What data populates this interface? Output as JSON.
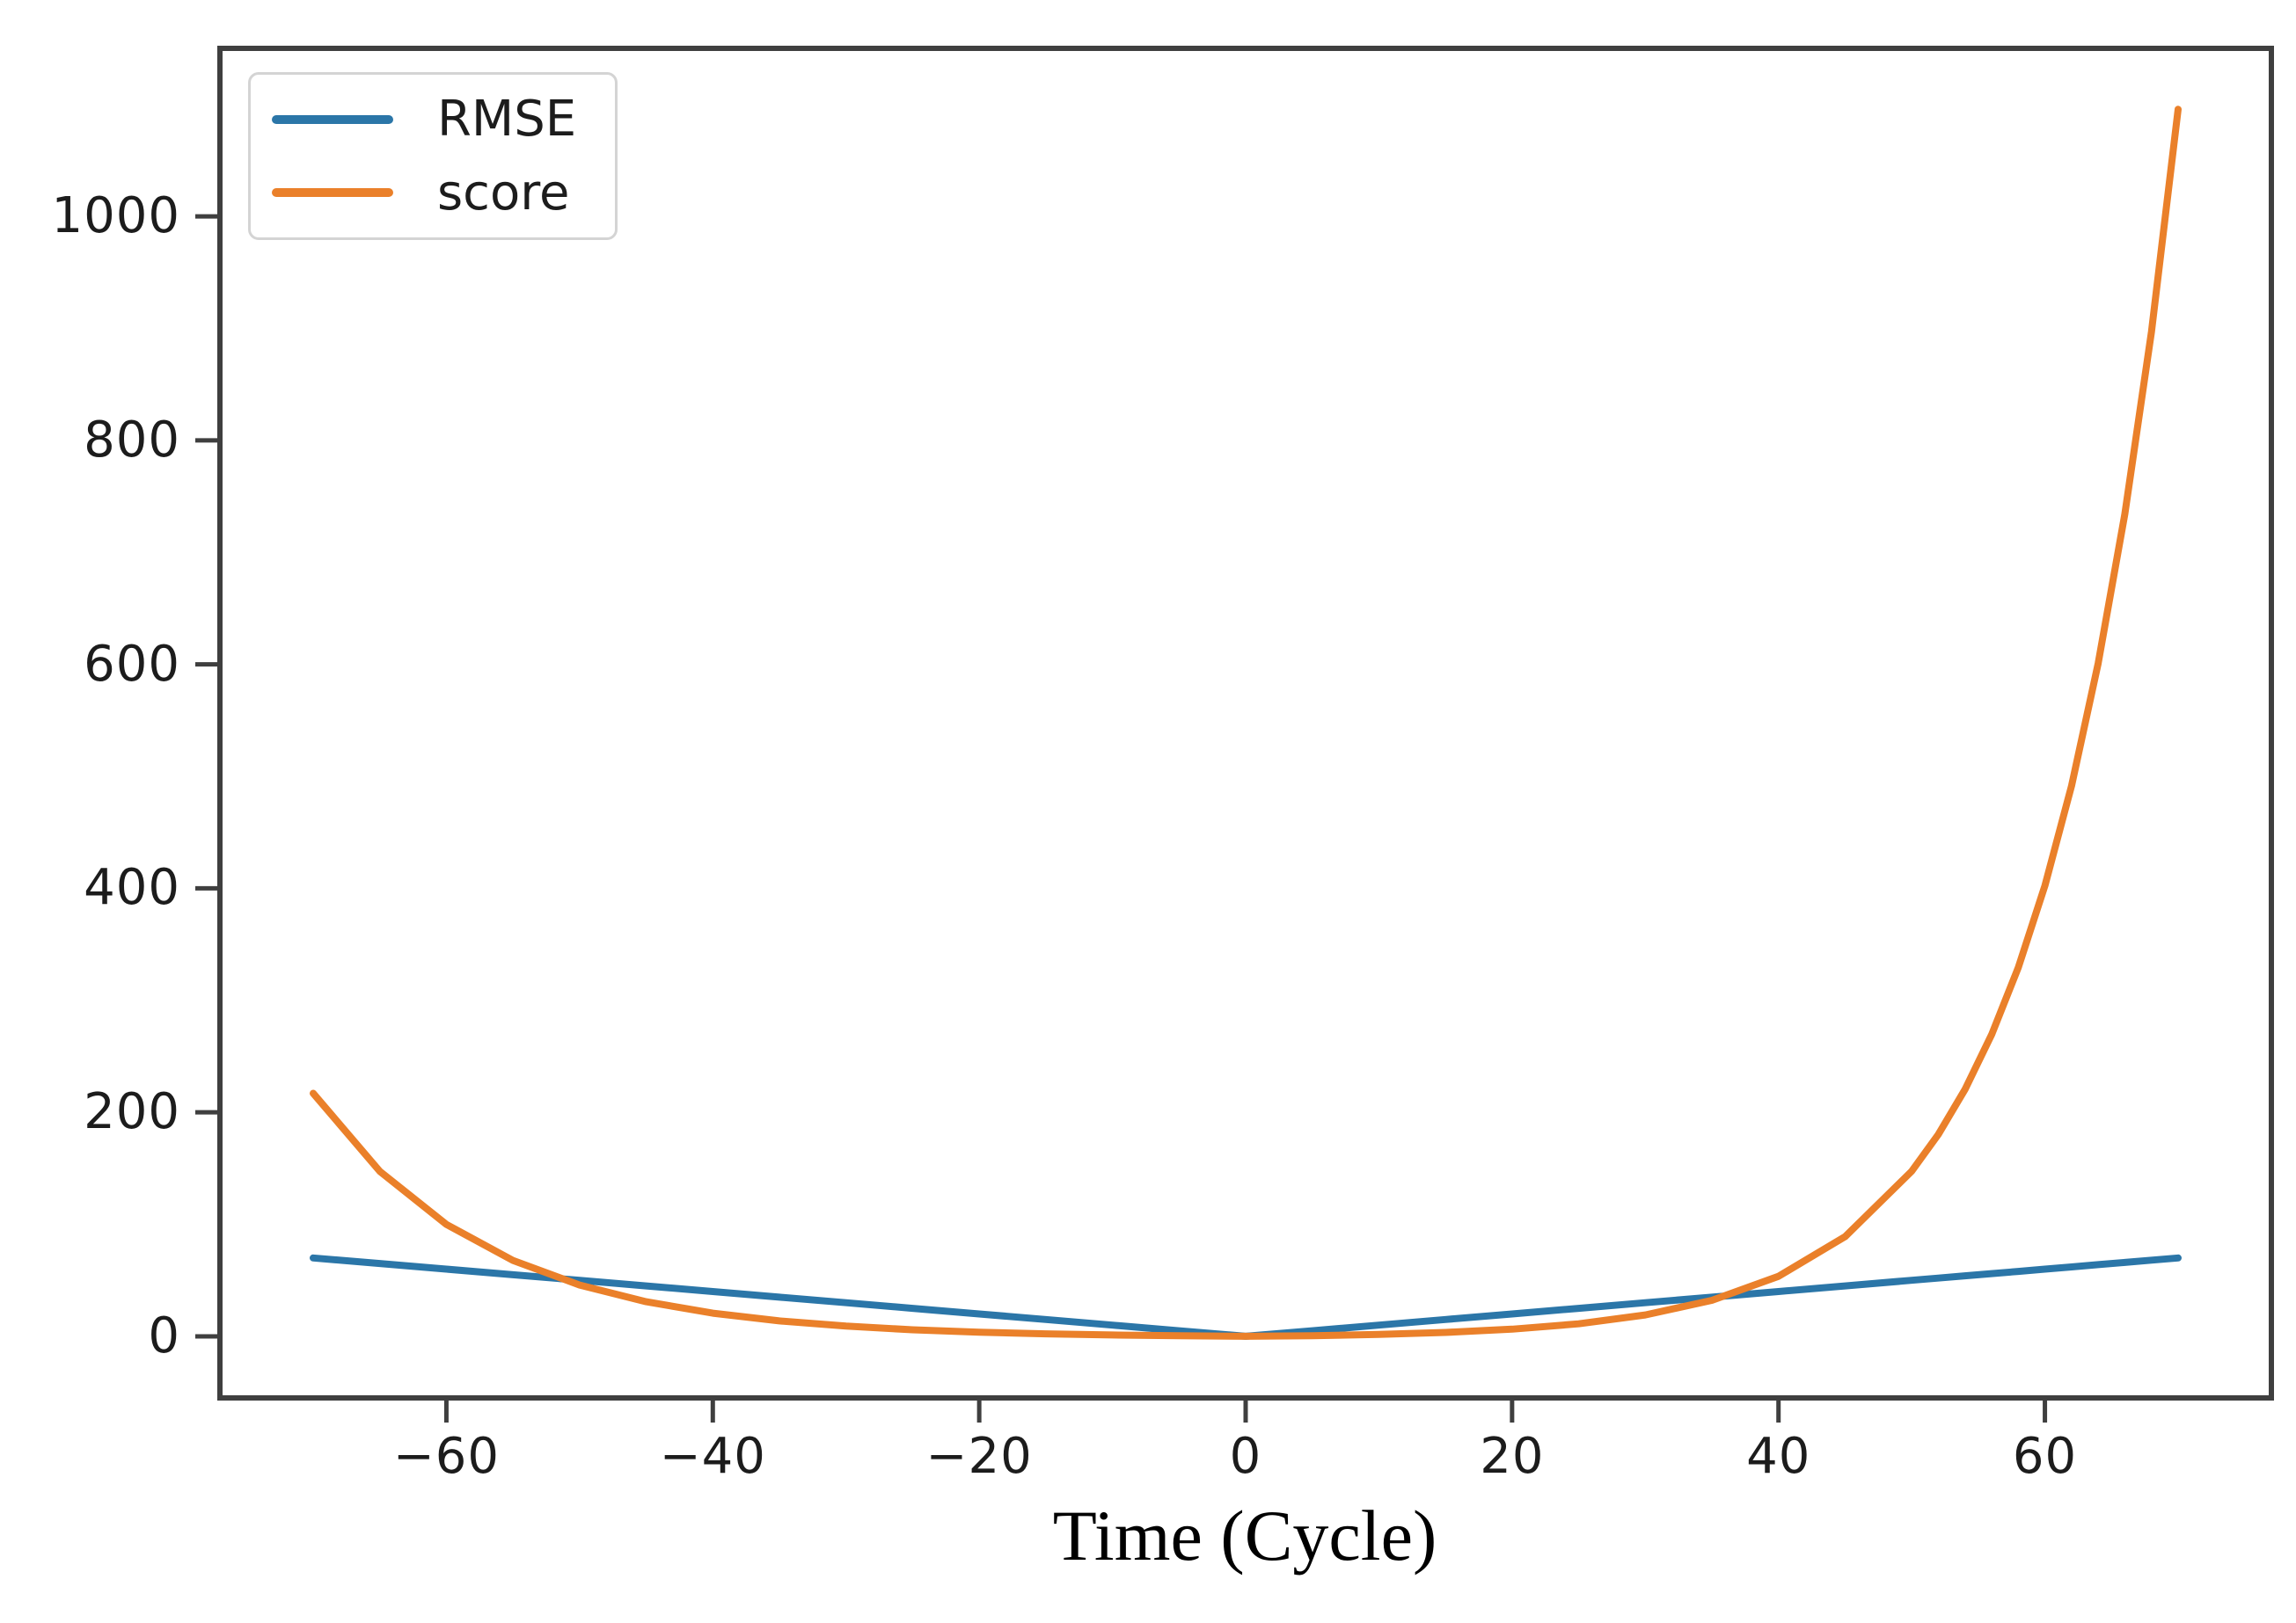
{
  "figure": {
    "background": "#ffffff",
    "spine_color": "#3f3f3f",
    "tick_color": "#3f3f3f",
    "text_color": "#1c1c1c"
  },
  "chart_data": {
    "type": "line",
    "title": "",
    "xlabel": "Time (Cycle)",
    "ylabel": "",
    "grid": false,
    "legend_position": "upper left",
    "xlim": [
      -77,
      77
    ],
    "ylim": [
      -55,
      1150
    ],
    "x_ticks": {
      "values": [
        -60,
        -40,
        -20,
        0,
        20,
        40,
        60
      ],
      "labels": [
        "−60",
        "−40",
        "−20",
        "0",
        "20",
        "40",
        "60"
      ]
    },
    "y_ticks": {
      "values": [
        0,
        200,
        400,
        600,
        800,
        1000
      ],
      "labels": [
        "0",
        "200",
        "400",
        "600",
        "800",
        "1000"
      ]
    },
    "x": [
      -70,
      -65,
      -60,
      -55,
      -50,
      -45,
      -40,
      -35,
      -30,
      -25,
      -20,
      -15,
      -10,
      -5,
      0,
      5,
      10,
      15,
      20,
      25,
      30,
      35,
      40,
      45,
      50,
      52,
      54,
      56,
      58,
      60,
      62,
      64,
      66,
      68,
      70
    ],
    "series": [
      {
        "name": "RMSE",
        "color": "#2b76a8",
        "values": [
          70,
          65,
          60,
          55,
          50,
          45,
          40,
          35,
          30,
          25,
          20,
          15,
          10,
          5,
          0,
          5,
          10,
          15,
          20,
          25,
          30,
          35,
          40,
          45,
          50,
          52,
          54,
          56,
          58,
          60,
          62,
          64,
          66,
          68,
          70
        ]
      },
      {
        "name": "score",
        "color": "#ea802a",
        "values": [
          217.0,
          147.4,
          100.0,
          67.8,
          45.8,
          30.9,
          20.7,
          13.8,
          9.1,
          5.8,
          3.7,
          2.2,
          1.2,
          0.5,
          0,
          0.6,
          1.7,
          3.5,
          6.4,
          11.2,
          19.1,
          32.1,
          53.6,
          89.0,
          147.4,
          180.3,
          220.4,
          269.4,
          329.3,
          402.4,
          491.7,
          600.8,
          734.1,
          896.9,
          1095.6
        ]
      }
    ]
  }
}
